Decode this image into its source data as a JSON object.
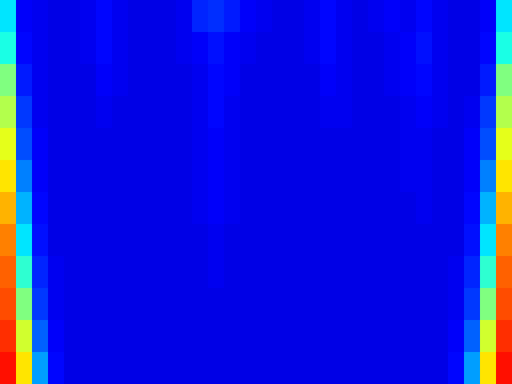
{
  "chart_data": {
    "type": "heatmap",
    "tick_labels": false,
    "color_range": [
      0,
      1
    ],
    "cells": [
      [
        0.35,
        0.12,
        0.11,
        0.1,
        0.1,
        0.11,
        0.13,
        0.11,
        0.1,
        0.1,
        0.1,
        0.11,
        0.16,
        0.17,
        0.15,
        0.12,
        0.11,
        0.1,
        0.1,
        0.11,
        0.13,
        0.11,
        0.1,
        0.11,
        0.12,
        0.11,
        0.13,
        0.11,
        0.1,
        0.1,
        0.12,
        0.35
      ],
      [
        0.4,
        0.13,
        0.11,
        0.1,
        0.1,
        0.11,
        0.13,
        0.11,
        0.1,
        0.1,
        0.1,
        0.11,
        0.12,
        0.14,
        0.12,
        0.11,
        0.1,
        0.1,
        0.1,
        0.11,
        0.13,
        0.11,
        0.1,
        0.1,
        0.11,
        0.12,
        0.14,
        0.11,
        0.1,
        0.1,
        0.13,
        0.4
      ],
      [
        0.5,
        0.15,
        0.11,
        0.1,
        0.1,
        0.1,
        0.12,
        0.11,
        0.1,
        0.1,
        0.1,
        0.1,
        0.11,
        0.13,
        0.12,
        0.1,
        0.1,
        0.1,
        0.1,
        0.1,
        0.12,
        0.11,
        0.1,
        0.1,
        0.11,
        0.12,
        0.13,
        0.11,
        0.1,
        0.1,
        0.15,
        0.5
      ],
      [
        0.55,
        0.18,
        0.11,
        0.1,
        0.1,
        0.1,
        0.11,
        0.1,
        0.1,
        0.1,
        0.1,
        0.1,
        0.11,
        0.13,
        0.11,
        0.1,
        0.1,
        0.1,
        0.1,
        0.1,
        0.11,
        0.11,
        0.1,
        0.1,
        0.1,
        0.11,
        0.12,
        0.11,
        0.1,
        0.11,
        0.18,
        0.55
      ],
      [
        0.6,
        0.2,
        0.12,
        0.1,
        0.1,
        0.1,
        0.1,
        0.1,
        0.1,
        0.1,
        0.1,
        0.1,
        0.11,
        0.12,
        0.11,
        0.1,
        0.1,
        0.1,
        0.1,
        0.1,
        0.1,
        0.1,
        0.1,
        0.1,
        0.1,
        0.11,
        0.11,
        0.1,
        0.1,
        0.12,
        0.2,
        0.6
      ],
      [
        0.65,
        0.25,
        0.12,
        0.1,
        0.1,
        0.1,
        0.1,
        0.1,
        0.1,
        0.1,
        0.1,
        0.1,
        0.11,
        0.12,
        0.11,
        0.1,
        0.1,
        0.1,
        0.1,
        0.1,
        0.1,
        0.1,
        0.1,
        0.1,
        0.1,
        0.11,
        0.11,
        0.1,
        0.1,
        0.12,
        0.25,
        0.65
      ],
      [
        0.7,
        0.3,
        0.13,
        0.1,
        0.1,
        0.1,
        0.1,
        0.1,
        0.1,
        0.1,
        0.1,
        0.1,
        0.11,
        0.12,
        0.11,
        0.1,
        0.1,
        0.1,
        0.1,
        0.1,
        0.1,
        0.1,
        0.1,
        0.1,
        0.1,
        0.1,
        0.11,
        0.1,
        0.1,
        0.13,
        0.3,
        0.7
      ],
      [
        0.75,
        0.35,
        0.14,
        0.1,
        0.1,
        0.1,
        0.1,
        0.1,
        0.1,
        0.1,
        0.1,
        0.1,
        0.1,
        0.11,
        0.1,
        0.1,
        0.1,
        0.1,
        0.1,
        0.1,
        0.1,
        0.1,
        0.1,
        0.1,
        0.1,
        0.1,
        0.1,
        0.1,
        0.1,
        0.14,
        0.35,
        0.75
      ],
      [
        0.78,
        0.42,
        0.16,
        0.11,
        0.1,
        0.1,
        0.1,
        0.1,
        0.1,
        0.1,
        0.1,
        0.1,
        0.1,
        0.11,
        0.1,
        0.1,
        0.1,
        0.1,
        0.1,
        0.1,
        0.1,
        0.1,
        0.1,
        0.1,
        0.1,
        0.1,
        0.1,
        0.1,
        0.11,
        0.16,
        0.42,
        0.78
      ],
      [
        0.8,
        0.5,
        0.18,
        0.11,
        0.1,
        0.1,
        0.1,
        0.1,
        0.1,
        0.1,
        0.1,
        0.1,
        0.1,
        0.1,
        0.1,
        0.1,
        0.1,
        0.1,
        0.1,
        0.1,
        0.1,
        0.1,
        0.1,
        0.1,
        0.1,
        0.1,
        0.1,
        0.1,
        0.11,
        0.18,
        0.5,
        0.8
      ],
      [
        0.83,
        0.58,
        0.22,
        0.12,
        0.1,
        0.1,
        0.1,
        0.1,
        0.1,
        0.1,
        0.1,
        0.1,
        0.1,
        0.1,
        0.1,
        0.1,
        0.1,
        0.1,
        0.1,
        0.1,
        0.1,
        0.1,
        0.1,
        0.1,
        0.1,
        0.1,
        0.1,
        0.1,
        0.12,
        0.22,
        0.58,
        0.83
      ],
      [
        0.86,
        0.65,
        0.28,
        0.13,
        0.1,
        0.1,
        0.1,
        0.1,
        0.1,
        0.1,
        0.1,
        0.1,
        0.1,
        0.1,
        0.1,
        0.1,
        0.1,
        0.1,
        0.1,
        0.1,
        0.1,
        0.1,
        0.1,
        0.1,
        0.1,
        0.1,
        0.1,
        0.1,
        0.13,
        0.28,
        0.65,
        0.86
      ]
    ]
  }
}
